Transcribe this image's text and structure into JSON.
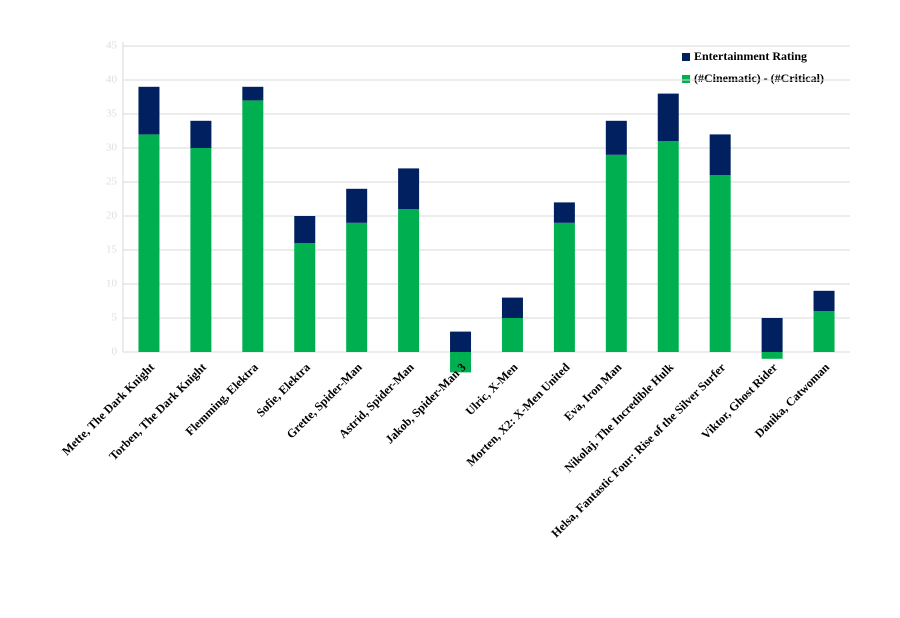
{
  "chart_data": {
    "type": "stacked_bar",
    "categories": [
      "Mette, The Dark Knight",
      "Torben, The Dark Knight",
      "Flemming, Elektra",
      "Sofie, Elektra",
      "Grette, Spider-Man",
      "Astrid, Spider-Man",
      "Jakob, Spider-Man 3",
      "Ulric, X-Men",
      "Morten, X2: X-Men United",
      "Eva, Iron Man",
      "Nikolaj, The Incredible Hulk",
      "Helsa, Fantastic Four: Rise of the Silver Surfer",
      "Viktor, Ghost Rider",
      "Danika, Catwoman"
    ],
    "series": [
      {
        "name": "(#Cinematic) - (#Critical)",
        "color": "#00b050",
        "values": [
          32,
          30,
          37,
          16,
          19,
          21,
          -3,
          5,
          19,
          29,
          31,
          26,
          -1,
          6
        ]
      },
      {
        "name": "Entertainment Rating",
        "color": "#002060",
        "values": [
          7,
          4,
          2,
          4,
          5,
          6,
          3,
          3,
          3,
          5,
          7,
          6,
          5,
          3
        ]
      }
    ],
    "ylim": [
      -5,
      45
    ],
    "yticks": [
      0,
      5,
      10,
      15,
      20,
      25,
      30,
      35,
      40,
      45
    ],
    "grid": true
  }
}
